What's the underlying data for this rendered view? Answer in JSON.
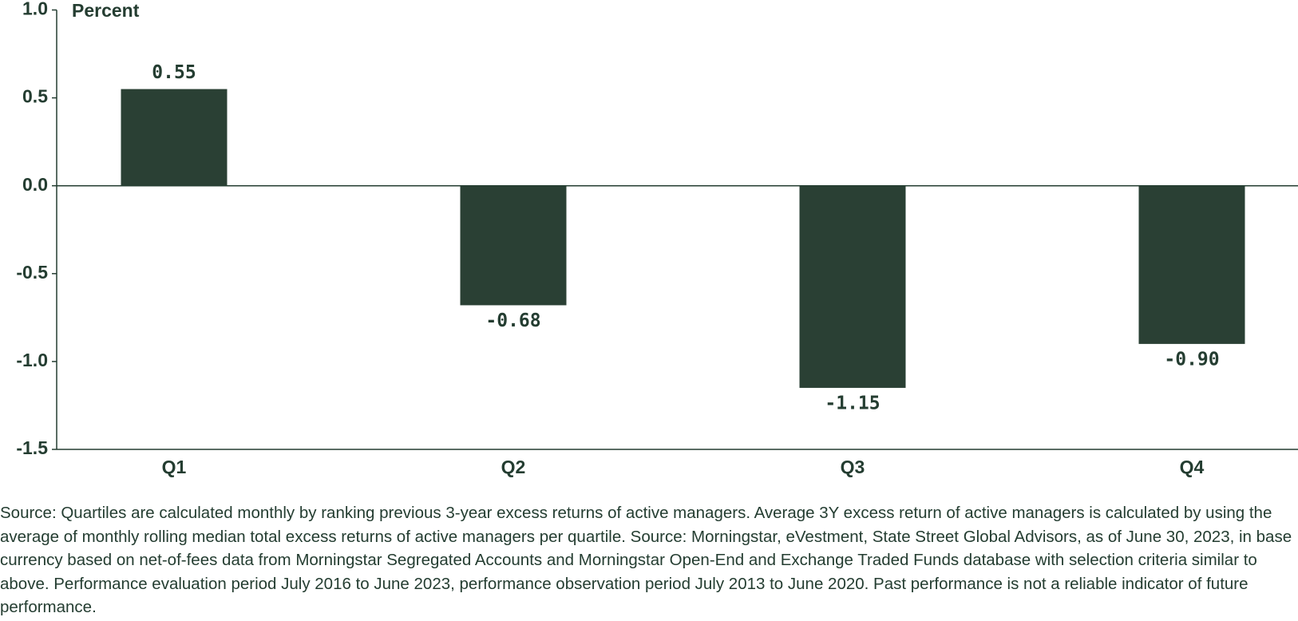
{
  "chart_data": {
    "type": "bar",
    "y_label": "Percent",
    "categories": [
      "Q1",
      "Q2",
      "Q3",
      "Q4"
    ],
    "values": [
      0.55,
      -0.68,
      -1.15,
      -0.9
    ],
    "value_labels": [
      "0.55",
      "-0.68",
      "-1.15",
      "-0.90"
    ],
    "color": "#2a4034",
    "ylim": [
      -1.5,
      1.0
    ],
    "yticks": [
      {
        "value": -1.5,
        "label": "-1.5"
      },
      {
        "value": -1.0,
        "label": "-1.0"
      },
      {
        "value": -0.5,
        "label": "-0.5"
      },
      {
        "value": 0,
        "label": "0.0"
      },
      {
        "value": 0.5,
        "label": "0.5"
      },
      {
        "value": 1.0,
        "label": "1.0"
      }
    ],
    "grid": false,
    "source": "Source: Quartiles are calculated monthly by ranking previous 3-year excess returns of active managers. Average 3Y excess return of active managers is calculated by using the average of monthly rolling median total excess returns of active managers per quartile. Source: Morningstar, eVestment, State Street Global Advisors, as of June 30, 2023, in base currency based on net-of-fees data from Morningstar Segregated Accounts and Morningstar Open-End and Exchange Traded Funds database with selection criteria similar to above. Performance evaluation period July 2016 to June 2023, performance observation period July 2013 to June 2020. Past performance is not a reliable indicator of future performance."
  }
}
